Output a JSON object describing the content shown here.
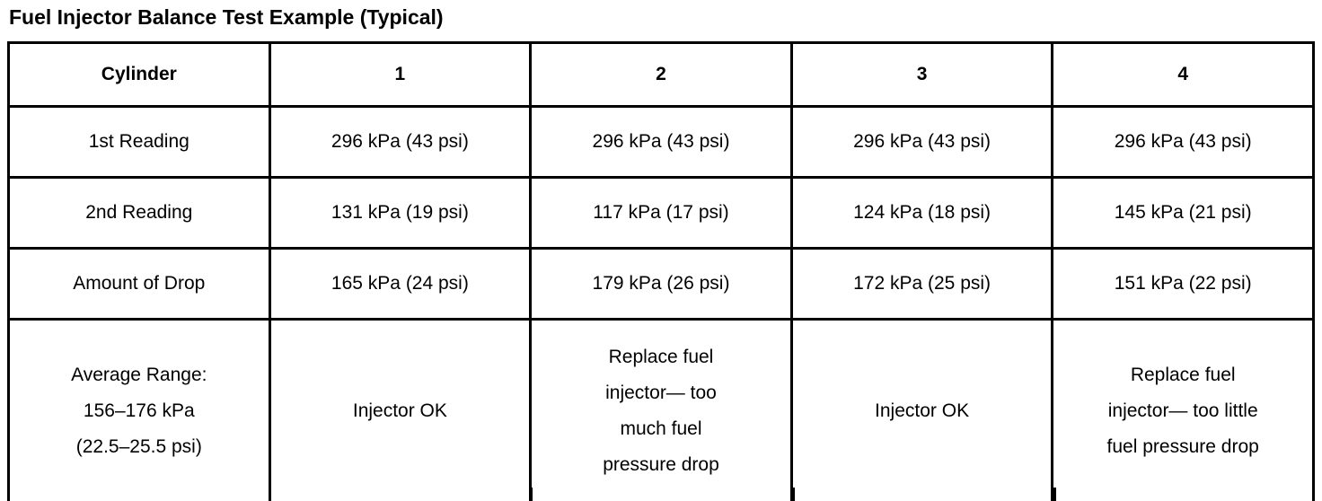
{
  "title": "Fuel Injector Balance Test Example (Typical)",
  "table": {
    "header": [
      "Cylinder",
      "1",
      "2",
      "3",
      "4"
    ],
    "rows": [
      {
        "label": "1st Reading",
        "cells": [
          "296 kPa (43 psi)",
          "296 kPa (43 psi)",
          "296 kPa (43 psi)",
          "296 kPa (43 psi)"
        ]
      },
      {
        "label": "2nd Reading",
        "cells": [
          "131 kPa (19 psi)",
          "117 kPa (17 psi)",
          "124 kPa (18 psi)",
          "145 kPa (21 psi)"
        ]
      },
      {
        "label": "Amount of Drop",
        "cells": [
          "165 kPa (24 psi)",
          "179 kPa (26 psi)",
          "172 kPa (25 psi)",
          "151 kPa (22 psi)"
        ]
      },
      {
        "label": "Average Range:\n156–176 kPa\n(22.5–25.5 psi)",
        "cells": [
          "Injector OK",
          "Replace fuel\ninjector— too\nmuch fuel\npressure drop",
          "Injector OK",
          "Replace fuel\ninjector— too little\nfuel pressure drop"
        ]
      }
    ]
  }
}
